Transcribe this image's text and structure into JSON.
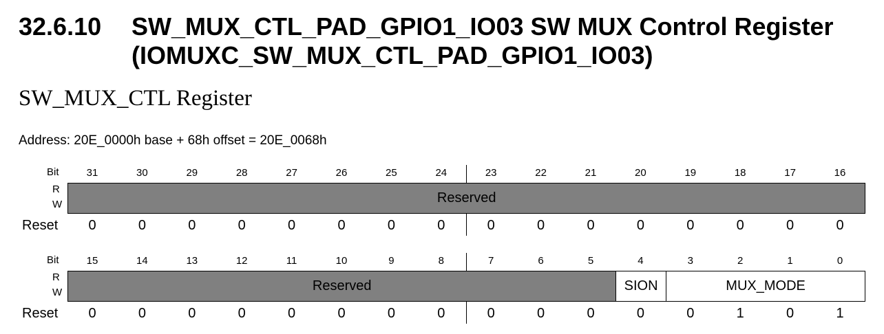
{
  "section": {
    "number": "32.6.10",
    "title": "SW_MUX_CTL_PAD_GPIO1_IO03 SW MUX Control Register (IOMUXC_SW_MUX_CTL_PAD_GPIO1_IO03)"
  },
  "subtitle": "SW_MUX_CTL Register",
  "address": "Address: 20E_0000h base + 68h offset = 20E_0068h",
  "labels": {
    "bit": "Bit",
    "r": "R",
    "w": "W",
    "reset": "Reset"
  },
  "upper": {
    "bits": [
      "31",
      "30",
      "29",
      "28",
      "27",
      "26",
      "25",
      "24",
      "23",
      "22",
      "21",
      "20",
      "19",
      "18",
      "17",
      "16"
    ],
    "reset": [
      "0",
      "0",
      "0",
      "0",
      "0",
      "0",
      "0",
      "0",
      "0",
      "0",
      "0",
      "0",
      "0",
      "0",
      "0",
      "0"
    ],
    "fields": [
      {
        "name": "Reserved",
        "span": 16,
        "shaded": true
      }
    ]
  },
  "lower": {
    "bits": [
      "15",
      "14",
      "13",
      "12",
      "11",
      "10",
      "9",
      "8",
      "7",
      "6",
      "5",
      "4",
      "3",
      "2",
      "1",
      "0"
    ],
    "reset": [
      "0",
      "0",
      "0",
      "0",
      "0",
      "0",
      "0",
      "0",
      "0",
      "0",
      "0",
      "0",
      "0",
      "1",
      "0",
      "1"
    ],
    "fields": [
      {
        "name": "Reserved",
        "span": 11,
        "shaded": true
      },
      {
        "name": "SION",
        "span": 1,
        "shaded": false
      },
      {
        "name": "MUX_MODE",
        "span": 4,
        "shaded": false
      }
    ]
  }
}
